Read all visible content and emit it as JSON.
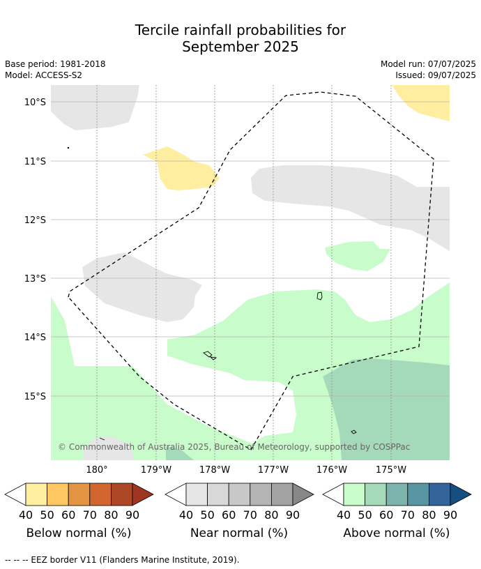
{
  "title_line1": "Tercile rainfall probabilities for",
  "title_line2": "September 2025",
  "base_period": "Base period: 1981-2018",
  "model": "Model: ACCESS-S2",
  "model_run": "Model run: 07/07/2025",
  "issued": "Issued: 09/07/2025",
  "copyright": "© Commonwealth of Australia 2025, Bureau of Meteorology, supported by COSPPac",
  "lat_labels": [
    "10°S",
    "11°S",
    "12°S",
    "13°S",
    "14°S",
    "15°S"
  ],
  "lon_labels": [
    "180°",
    "179°W",
    "178°W",
    "177°W",
    "176°W",
    "175°W"
  ],
  "legends": [
    {
      "title": "Below normal (%)",
      "ticks": [
        "40",
        "50",
        "60",
        "70",
        "80",
        "90"
      ],
      "colors": [
        "#ffffff",
        "#ffeda0",
        "#fec761",
        "#e49543",
        "#d1662f",
        "#ad4726",
        "#a13523"
      ]
    },
    {
      "title": "Near normal (%)",
      "ticks": [
        "40",
        "50",
        "60",
        "70",
        "80",
        "90"
      ],
      "colors": [
        "#ffffff",
        "#e6e6e6",
        "#d8d8d8",
        "#c8c8c8",
        "#b4b4b4",
        "#a2a2a2",
        "#878787"
      ]
    },
    {
      "title": "Above normal (%)",
      "ticks": [
        "40",
        "50",
        "60",
        "70",
        "80",
        "90"
      ],
      "colors": [
        "#ffffff",
        "#c8fcca",
        "#a4d9b9",
        "#7db3ad",
        "#5795a3",
        "#33659a",
        "#154f82"
      ]
    }
  ],
  "footnote": "--  --  -- EEZ border V11 (Flanders Marine Institute, 2019).",
  "colors": {
    "below_40_50": "#ffeda0",
    "near_40_50": "#e6e6e6",
    "above_40_50": "#c8fcca",
    "above_50_60": "#a4d9b9"
  }
}
